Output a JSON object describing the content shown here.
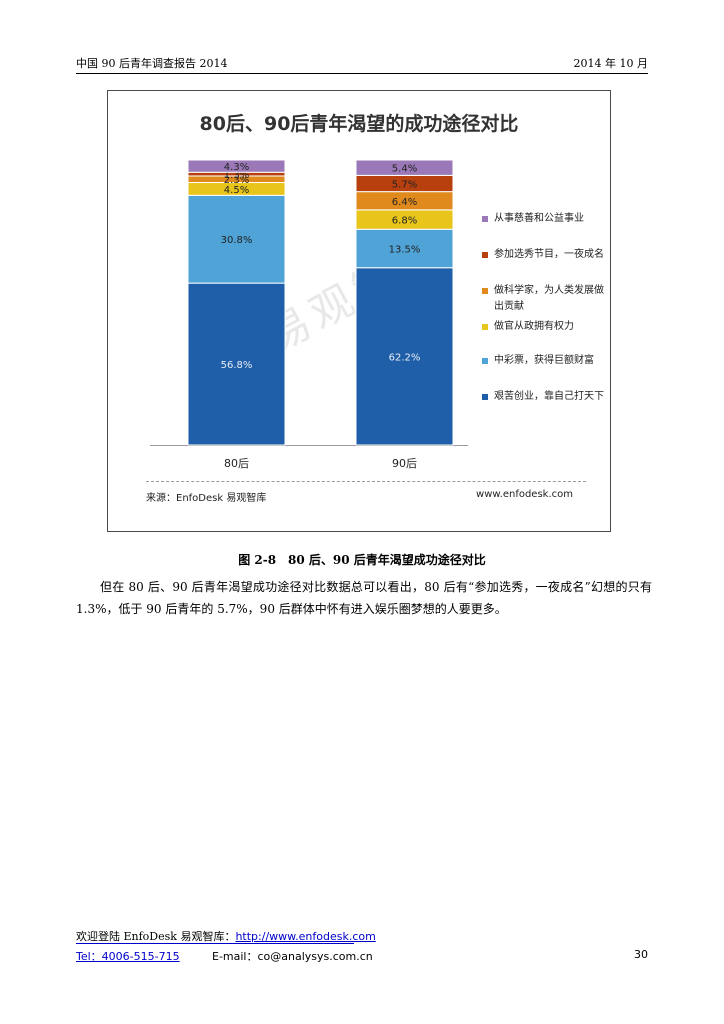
{
  "header": {
    "left": "中国 90 后青年调查报告 2014",
    "right": "2014 年 10 月"
  },
  "chart": {
    "title": "80后、90后青年渴望的成功途径对比",
    "watermark": "易观智库",
    "source": "来源：EnfoDesk 易观智库",
    "website": "www.enfodesk.com"
  },
  "chart_data": {
    "type": "bar",
    "stacked": true,
    "title": "80后、90后青年渴望的成功途径对比",
    "categories": [
      "80后",
      "90后"
    ],
    "ylim": [
      0,
      100
    ],
    "series": [
      {
        "name": "艰苦创业，靠自己打天下",
        "values": [
          56.8,
          62.2
        ],
        "labels": [
          "56.8%",
          "62.2%"
        ],
        "color": "#1f5ea8"
      },
      {
        "name": "中彩票，获得巨额财富",
        "values": [
          30.8,
          13.5
        ],
        "labels": [
          "30.8%",
          "13.5%"
        ],
        "color": "#4fa3d6"
      },
      {
        "name": "做官从政拥有权力",
        "values": [
          4.5,
          6.8
        ],
        "labels": [
          "4.5%",
          "6.8%"
        ],
        "color": "#e8c51b"
      },
      {
        "name": "做科学家，为人类发展做出贡献",
        "values": [
          2.3,
          6.4
        ],
        "labels": [
          "2.3%",
          "6.4%"
        ],
        "color": "#e08a1e"
      },
      {
        "name": "参加选秀节目，一夜成名",
        "values": [
          1.3,
          5.7
        ],
        "labels": [
          "1.3%",
          "5.7%"
        ],
        "color": "#b8400f"
      },
      {
        "name": "从事慈善和公益事业",
        "values": [
          4.3,
          5.4
        ],
        "labels": [
          "4.3%",
          "5.4%"
        ],
        "color": "#9b79b9"
      }
    ],
    "legend": "right",
    "grid": false
  },
  "caption": "图 2-8　80 后、90 后青年渴望成功途径对比",
  "paragraph": "但在 80 后、90 后青年渴望成功途径对比数据总可以看出，80 后有“参加选秀，一夜成名”幻想的只有 1.3%，低于 90 后青年的 5.7%，90 后群体中怀有进入娱乐圈梦想的人要更多。",
  "footer": {
    "welcome": "欢迎登陆 EnfoDesk 易观智库：",
    "url": "http://www.enfodesk.com",
    "tel": "Tel：4006-515-715",
    "email": "E-mail：co@analysys.com.cn",
    "page": "30"
  }
}
